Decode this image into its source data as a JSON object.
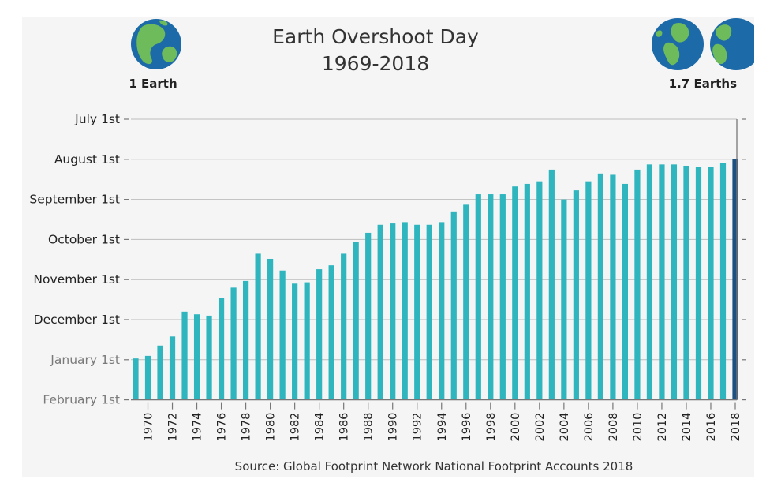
{
  "header": {
    "title_line1": "Earth Overshoot Day",
    "title_line2": "1969-2018",
    "left_label": "1 Earth",
    "right_label": "1.7 Earths"
  },
  "footer": {
    "source": "Source: Global Footprint Network National Footprint Accounts 2018"
  },
  "colors": {
    "bar": "#2eb5be",
    "bar_highlight": "#1d4f80",
    "grid": "#bdbdbd",
    "axis": "#777777",
    "tick_label_dark": "#222222",
    "tick_label_light": "#7a7a7a"
  },
  "icons": {
    "left": "earth-globe-icon",
    "right": "earth-globe-icon"
  },
  "chart_data": {
    "type": "bar",
    "title": "Earth Overshoot Day 1969-2018",
    "xlabel": "",
    "ylabel": "",
    "y_axis_reversed": true,
    "y_ticks": [
      "July 1st",
      "August 1st",
      "September 1st",
      "October 1st",
      "November 1st",
      "December 1st",
      "January 1st",
      "February 1st"
    ],
    "ylim": [
      "February 1st",
      "July 1st"
    ],
    "x_tick_labels": [
      "1970",
      "1972",
      "1974",
      "1976",
      "1978",
      "1980",
      "1982",
      "1984",
      "1986",
      "1988",
      "1990",
      "1992",
      "1994",
      "1996",
      "1998",
      "2000",
      "2002",
      "2004",
      "2006",
      "2008",
      "2010",
      "2012",
      "2014",
      "2016",
      "2018"
    ],
    "categories": [
      "1969",
      "1970",
      "1971",
      "1972",
      "1973",
      "1974",
      "1975",
      "1976",
      "1977",
      "1978",
      "1979",
      "1980",
      "1981",
      "1982",
      "1983",
      "1984",
      "1985",
      "1986",
      "1987",
      "1988",
      "1989",
      "1990",
      "1991",
      "1992",
      "1993",
      "1994",
      "1995",
      "1996",
      "1997",
      "1998",
      "1999",
      "2000",
      "2001",
      "2002",
      "2003",
      "2004",
      "2005",
      "2006",
      "2007",
      "2008",
      "2009",
      "2010",
      "2011",
      "2012",
      "2013",
      "2014",
      "2015",
      "2016",
      "2017",
      "2018"
    ],
    "values": [
      "Dec 31",
      "Dec 29",
      "Dec 21",
      "Dec 14",
      "Nov 25",
      "Nov 27",
      "Nov 28",
      "Nov 15",
      "Nov 7",
      "Nov 2",
      "Oct 12",
      "Oct 16",
      "Oct 25",
      "Nov 4",
      "Nov 3",
      "Oct 24",
      "Oct 21",
      "Oct 12",
      "Oct 3",
      "Sep 26",
      "Sep 20",
      "Sep 19",
      "Sep 18",
      "Sep 20",
      "Sep 20",
      "Sep 18",
      "Sep 10",
      "Sep 5",
      "Aug 28",
      "Aug 28",
      "Aug 28",
      "Aug 22",
      "Aug 20",
      "Aug 18",
      "Aug 9",
      "Sep 1",
      "Aug 25",
      "Aug 18",
      "Aug 12",
      "Aug 13",
      "Aug 20",
      "Aug 9",
      "Aug 5",
      "Aug 5",
      "Aug 5",
      "Aug 6",
      "Aug 7",
      "Aug 7",
      "Aug 4",
      "Aug 1"
    ],
    "highlight": "2018",
    "grid": true
  }
}
